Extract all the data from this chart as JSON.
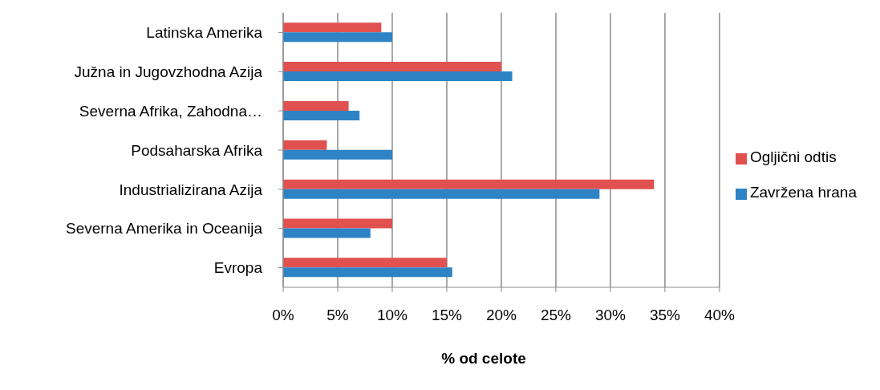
{
  "chart_data": {
    "type": "bar",
    "orientation": "horizontal",
    "xlabel": "% od celote",
    "categories": [
      "Latinska Amerika",
      "Južna in Jugovzhodna Azija",
      "Severna Afrika, Zahodna…",
      "Podsaharska Afrika",
      "Industrializirana Azija",
      "Severna Amerika in Oceanija",
      "Evropa"
    ],
    "series": [
      {
        "name": "Ogljični odtis",
        "color": "#e0514f",
        "values": [
          9,
          20,
          6,
          4,
          34,
          10,
          15
        ]
      },
      {
        "name": "Zavržena hrana",
        "color": "#2e83c5",
        "values": [
          10,
          21,
          7,
          10,
          29,
          8,
          15.5
        ]
      }
    ],
    "xlim": [
      0,
      40
    ],
    "xticks": [
      {
        "value": 0,
        "label": "0%"
      },
      {
        "value": 5,
        "label": "5%"
      },
      {
        "value": 10,
        "label": "10%"
      },
      {
        "value": 15,
        "label": "15%"
      },
      {
        "value": 20,
        "label": "20%"
      },
      {
        "value": 25,
        "label": "25%"
      },
      {
        "value": 30,
        "label": "30%"
      },
      {
        "value": 35,
        "label": "35%"
      },
      {
        "value": 40,
        "label": "40%"
      }
    ],
    "grid": "x",
    "legend": "right"
  }
}
